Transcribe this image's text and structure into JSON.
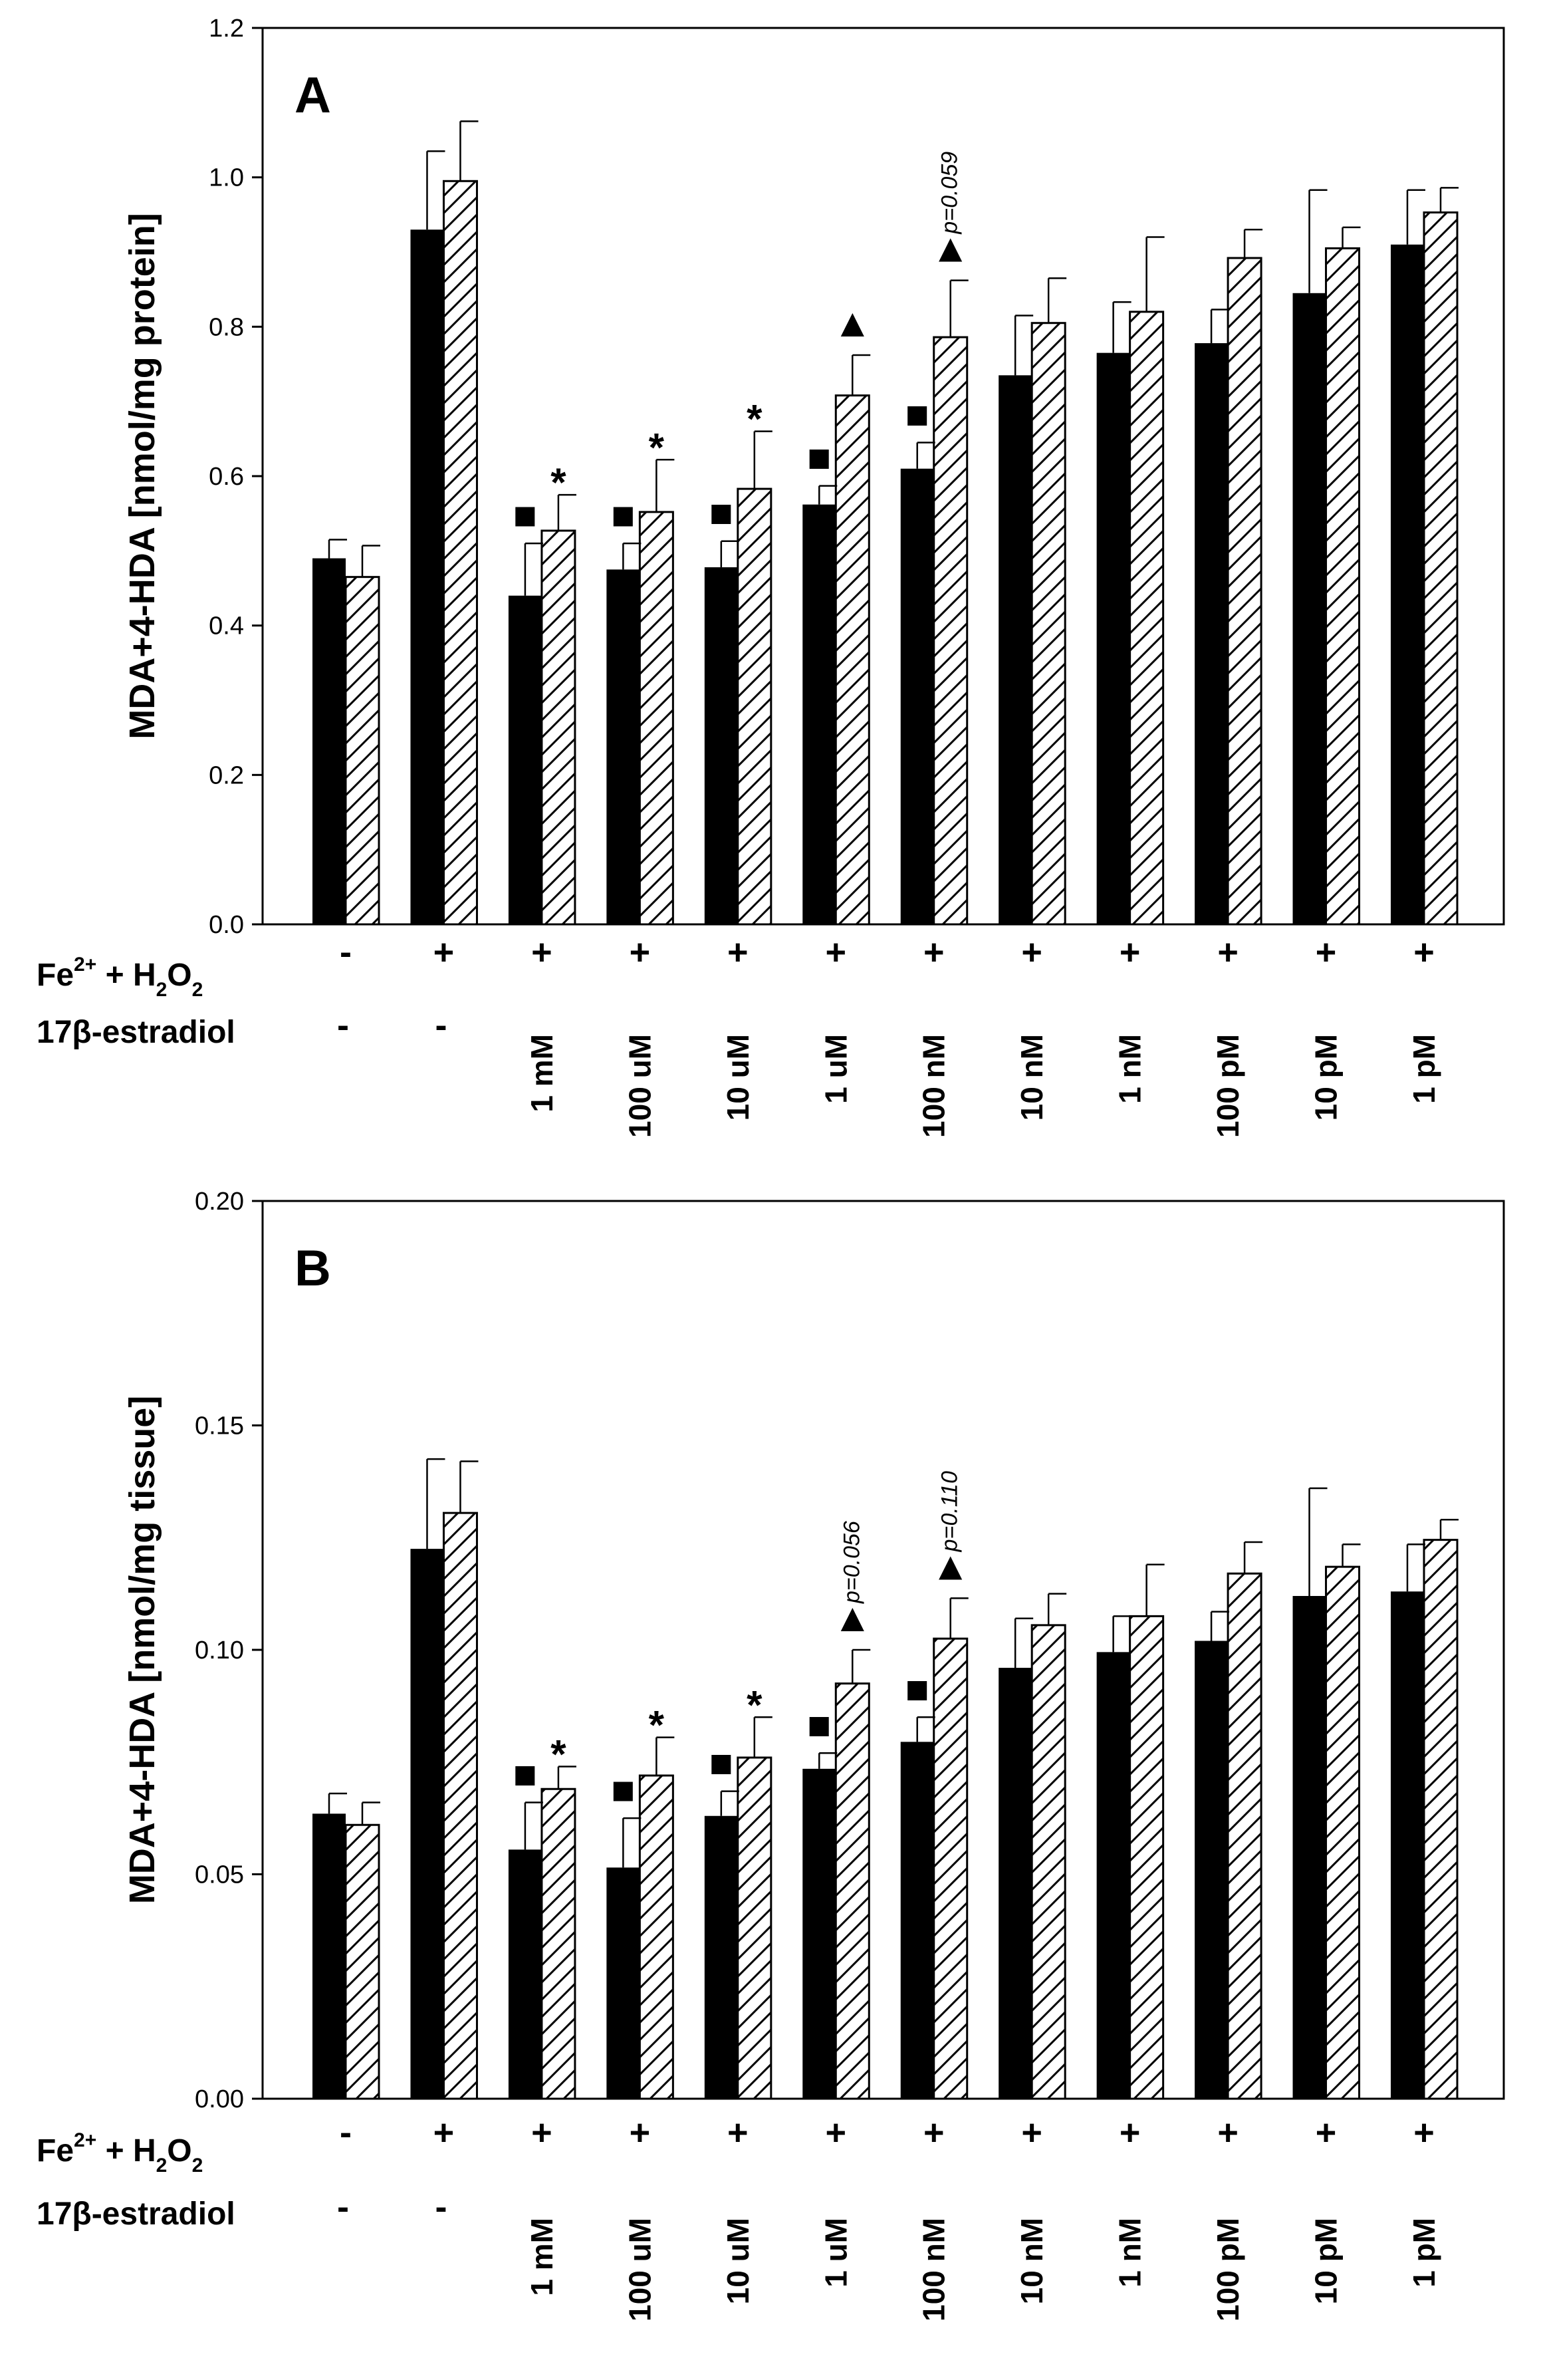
{
  "chart_data": [
    {
      "panel": "A",
      "type": "bar",
      "ylabel": "MDA+4-HDA [nmol/mg protein]",
      "ylim": [
        0,
        1.2
      ],
      "yticks": [
        "0.0",
        "0.2",
        "0.4",
        "0.6",
        "0.8",
        "1.0",
        "1.2"
      ],
      "categories": [
        "-",
        "+",
        "+",
        "+",
        "+",
        "+",
        "+",
        "+",
        "+",
        "+",
        "+",
        "+"
      ],
      "concentrations": [
        "-",
        "-",
        "1 mM",
        "100 uM",
        "10 uM",
        "1 uM",
        "100 nM",
        "10 nM",
        "1 nM",
        "100 pM",
        "10 pM",
        "1 pM"
      ],
      "row_labels": {
        "oxidant_pre": "Fe",
        "oxidant_sup": "2+",
        "oxidant_mid": " + H",
        "oxidant_sub": "2",
        "oxidant_end": "O",
        "oxidant_sub2": "2",
        "estradiol": "17β-estradiol"
      },
      "series": [
        {
          "name": "solid",
          "values": [
            0.49,
            0.93,
            0.44,
            0.475,
            0.478,
            0.562,
            0.61,
            0.735,
            0.765,
            0.778,
            0.845,
            0.91
          ],
          "errors": [
            0.025,
            0.105,
            0.07,
            0.035,
            0.035,
            0.025,
            0.035,
            0.08,
            0.068,
            0.045,
            0.138,
            0.073
          ]
        },
        {
          "name": "hatched",
          "values": [
            0.465,
            0.995,
            0.527,
            0.552,
            0.583,
            0.708,
            0.786,
            0.805,
            0.82,
            0.892,
            0.905,
            0.953
          ],
          "errors": [
            0.042,
            0.08,
            0.048,
            0.07,
            0.077,
            0.054,
            0.076,
            0.06,
            0.1,
            0.038,
            0.028,
            0.033
          ]
        }
      ],
      "annotations": [
        {
          "index": 2,
          "series": "solid",
          "mark": "■"
        },
        {
          "index": 2,
          "series": "hatched",
          "mark": "*"
        },
        {
          "index": 3,
          "series": "solid",
          "mark": "■"
        },
        {
          "index": 3,
          "series": "hatched",
          "mark": "*"
        },
        {
          "index": 4,
          "series": "solid",
          "mark": "■"
        },
        {
          "index": 4,
          "series": "hatched",
          "mark": "*"
        },
        {
          "index": 5,
          "series": "solid",
          "mark": "■"
        },
        {
          "index": 5,
          "series": "hatched",
          "mark": "▲"
        },
        {
          "index": 6,
          "series": "solid",
          "mark": "■"
        },
        {
          "index": 6,
          "series": "hatched",
          "mark": "▲"
        }
      ],
      "pvalues": [
        {
          "index": 6,
          "series": "hatched",
          "text": "p=0.059"
        }
      ]
    },
    {
      "panel": "B",
      "type": "bar",
      "ylabel": "MDA+4-HDA [nmol/mg tissue]",
      "ylim": [
        0,
        0.2
      ],
      "yticks": [
        "0.00",
        "0.05",
        "0.10",
        "0.15",
        "0.20"
      ],
      "categories": [
        "-",
        "+",
        "+",
        "+",
        "+",
        "+",
        "+",
        "+",
        "+",
        "+",
        "+",
        "+"
      ],
      "concentrations": [
        "-",
        "-",
        "1 mM",
        "100 uM",
        "10 uM",
        "1 uM",
        "100 nM",
        "10 nM",
        "1 nM",
        "100 pM",
        "10 pM",
        "1 pM"
      ],
      "row_labels": {
        "oxidant_pre": "Fe",
        "oxidant_sup": "2+",
        "oxidant_mid": " + H",
        "oxidant_sub": "2",
        "oxidant_end": "O",
        "oxidant_sub2": "2",
        "estradiol": "17β-estradiol"
      },
      "series": [
        {
          "name": "solid",
          "values": [
            0.0635,
            0.1225,
            0.0555,
            0.0515,
            0.063,
            0.0735,
            0.0795,
            0.096,
            0.0995,
            0.102,
            0.112,
            0.113
          ],
          "errors": [
            0.0045,
            0.02,
            0.0105,
            0.011,
            0.0055,
            0.0035,
            0.0055,
            0.011,
            0.008,
            0.0065,
            0.024,
            0.0105
          ]
        },
        {
          "name": "hatched",
          "values": [
            0.061,
            0.1305,
            0.069,
            0.072,
            0.076,
            0.0925,
            0.1025,
            0.1055,
            0.1075,
            0.117,
            0.1185,
            0.1245
          ],
          "errors": [
            0.005,
            0.0115,
            0.005,
            0.0085,
            0.009,
            0.0075,
            0.009,
            0.007,
            0.0115,
            0.007,
            0.005,
            0.0045
          ]
        }
      ],
      "annotations": [
        {
          "index": 2,
          "series": "solid",
          "mark": "■"
        },
        {
          "index": 2,
          "series": "hatched",
          "mark": "*"
        },
        {
          "index": 3,
          "series": "solid",
          "mark": "■"
        },
        {
          "index": 3,
          "series": "hatched",
          "mark": "*"
        },
        {
          "index": 4,
          "series": "solid",
          "mark": "■"
        },
        {
          "index": 4,
          "series": "hatched",
          "mark": "*"
        },
        {
          "index": 5,
          "series": "solid",
          "mark": "■"
        },
        {
          "index": 5,
          "series": "hatched",
          "mark": "▲"
        },
        {
          "index": 6,
          "series": "solid",
          "mark": "■"
        },
        {
          "index": 6,
          "series": "hatched",
          "mark": "▲"
        }
      ],
      "pvalues": [
        {
          "index": 5,
          "series": "hatched",
          "text": "p=0.056"
        },
        {
          "index": 6,
          "series": "hatched",
          "text": "p=0.110"
        }
      ]
    }
  ]
}
